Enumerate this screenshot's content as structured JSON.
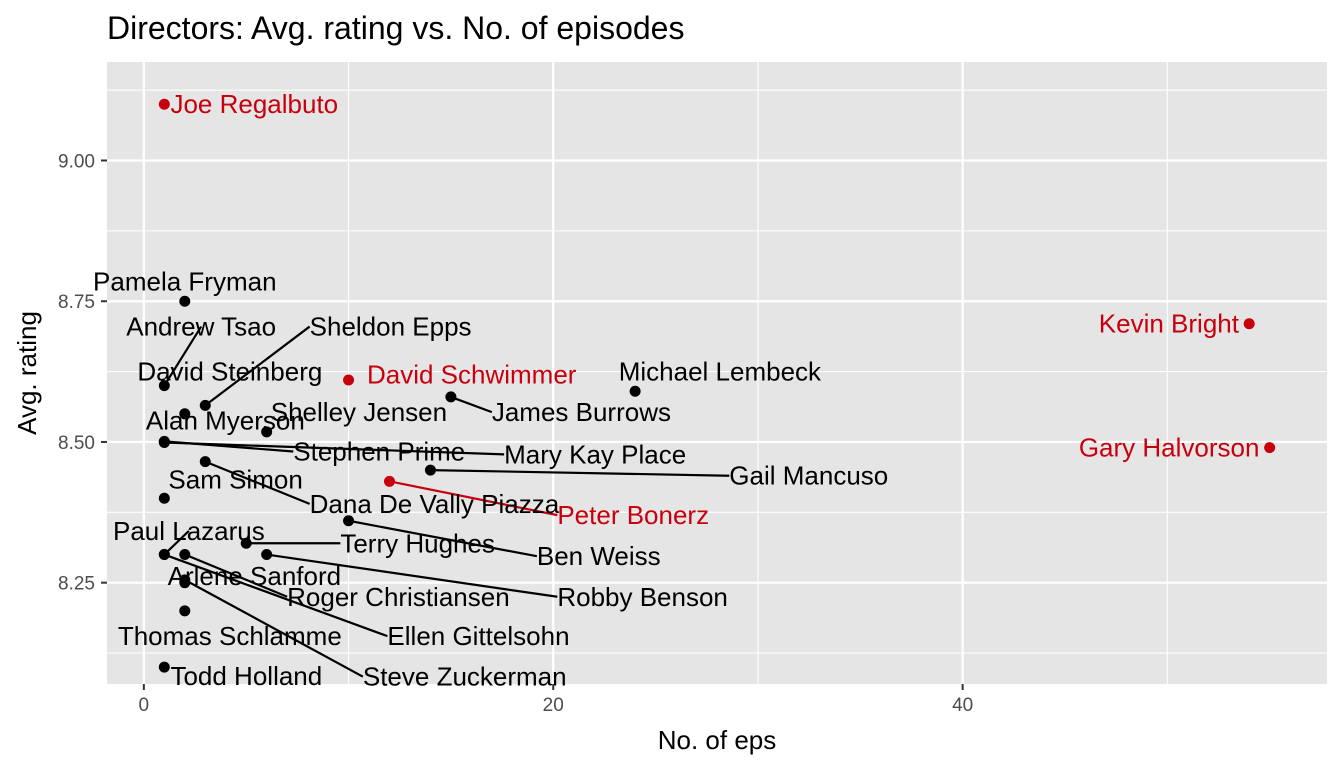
{
  "chart_data": {
    "type": "scatter",
    "title": "Directors: Avg. rating vs. No. of episodes",
    "xlabel": "No. of eps",
    "ylabel": "Avg. rating",
    "xlim": [
      -1.8,
      57.8
    ],
    "ylim": [
      8.07,
      9.175
    ],
    "xticks": [
      {
        "value": 0,
        "label": "0"
      },
      {
        "value": 20,
        "label": "20"
      },
      {
        "value": 40,
        "label": "40"
      }
    ],
    "yticks": [
      {
        "value": 8.25,
        "label": "8.25"
      },
      {
        "value": 8.5,
        "label": "8.50"
      },
      {
        "value": 8.75,
        "label": "8.75"
      },
      {
        "value": 9.0,
        "label": "9.00"
      }
    ],
    "grid": true,
    "legend": "none",
    "colors": {
      "panel": "#e5e5e5",
      "grid": "#ffffff",
      "normal_point": "#000000",
      "highlight_point": "#c8000d"
    },
    "points": [
      {
        "name": "Joe Regalbuto",
        "x": 1,
        "y": 9.1,
        "highlight": true,
        "label_x": 1.3,
        "label_y": 9.1,
        "anchor": "start"
      },
      {
        "name": "Kevin Bright",
        "x": 54,
        "y": 8.71,
        "highlight": true,
        "label_x": 53.5,
        "label_y": 8.71,
        "anchor": "end"
      },
      {
        "name": "Gary Halvorson",
        "x": 55,
        "y": 8.49,
        "highlight": true,
        "label_x": 54.5,
        "label_y": 8.49,
        "anchor": "end"
      },
      {
        "name": "David Schwimmer",
        "x": 10,
        "y": 8.61,
        "highlight": true,
        "label_x": 10.9,
        "label_y": 8.62,
        "anchor": "start"
      },
      {
        "name": "Peter Bonerz",
        "x": 12,
        "y": 8.43,
        "highlight": true,
        "label_x": 20.2,
        "label_y": 8.37,
        "anchor": "start",
        "leader": true
      },
      {
        "name": "Pamela Fryman",
        "x": 2,
        "y": 8.75,
        "highlight": false,
        "label_x": 2.0,
        "label_y": 8.785,
        "anchor": "middle"
      },
      {
        "name": "Andrew Tsao",
        "x": 1,
        "y": 8.6,
        "highlight": false,
        "label_x": 2.8,
        "label_y": 8.705,
        "anchor": "middle",
        "leader": true
      },
      {
        "name": "Sheldon Epps",
        "x": 3,
        "y": 8.565,
        "highlight": false,
        "label_x": 8.1,
        "label_y": 8.705,
        "anchor": "start",
        "leader": true
      },
      {
        "name": "David Steinberg",
        "x": 2,
        "y": 8.55,
        "highlight": false,
        "label_x": 4.2,
        "label_y": 8.625,
        "anchor": "middle"
      },
      {
        "name": "Michael Lembeck",
        "x": 24,
        "y": 8.59,
        "highlight": false,
        "label_x": 23.2,
        "label_y": 8.625,
        "anchor": "start"
      },
      {
        "name": "Shelley Jensen",
        "x": 6,
        "y": 8.518,
        "highlight": false,
        "label_x": 6.2,
        "label_y": 8.553,
        "anchor": "start"
      },
      {
        "name": "James Burrows",
        "x": 15,
        "y": 8.58,
        "highlight": false,
        "label_x": 17.0,
        "label_y": 8.553,
        "anchor": "start",
        "leader": true
      },
      {
        "name": "Alan Myerson",
        "x": 1,
        "y": 8.5,
        "highlight": false,
        "label_x": 0.1,
        "label_y": 8.538,
        "anchor": "start"
      },
      {
        "name": "Stephen Prime",
        "x": 1,
        "y": 8.501,
        "highlight": false,
        "label_x": 7.3,
        "label_y": 8.483,
        "anchor": "start",
        "leader": true
      },
      {
        "name": "Mary Kay Place",
        "x": 1,
        "y": 8.499,
        "highlight": false,
        "label_x": 17.6,
        "label_y": 8.478,
        "anchor": "start",
        "leader": true
      },
      {
        "name": "Gail Mancuso",
        "x": 14,
        "y": 8.45,
        "highlight": false,
        "label_x": 28.6,
        "label_y": 8.44,
        "anchor": "start",
        "leader": true
      },
      {
        "name": "Sam Simon",
        "x": 1,
        "y": 8.4,
        "highlight": false,
        "label_x": 1.2,
        "label_y": 8.433,
        "anchor": "start"
      },
      {
        "name": "Dana De Vally Piazza",
        "x": 3,
        "y": 8.465,
        "highlight": false,
        "label_x": 8.1,
        "label_y": 8.39,
        "anchor": "start",
        "leader": true
      },
      {
        "name": "Paul Lazarus",
        "x": 1,
        "y": 8.3,
        "highlight": false,
        "label_x": 2.2,
        "label_y": 8.342,
        "anchor": "middle",
        "leader": true
      },
      {
        "name": "Terry Hughes",
        "x": 5,
        "y": 8.32,
        "highlight": false,
        "label_x": 9.6,
        "label_y": 8.32,
        "anchor": "start",
        "leader": true
      },
      {
        "name": "Ben Weiss",
        "x": 10,
        "y": 8.36,
        "highlight": false,
        "label_x": 19.2,
        "label_y": 8.297,
        "anchor": "start",
        "leader": true
      },
      {
        "name": "Arlene Sanford",
        "x": 2,
        "y": 8.25,
        "highlight": false,
        "label_x": 5.4,
        "label_y": 8.262,
        "anchor": "middle"
      },
      {
        "name": "Roger Christiansen",
        "x": 2,
        "y": 8.3,
        "highlight": false,
        "label_x": 7.0,
        "label_y": 8.225,
        "anchor": "start",
        "leader": true
      },
      {
        "name": "Robby Benson",
        "x": 6,
        "y": 8.3,
        "highlight": false,
        "label_x": 20.2,
        "label_y": 8.225,
        "anchor": "start",
        "leader": true
      },
      {
        "name": "Ellen Gittelsohn",
        "x": 1,
        "y": 8.3,
        "highlight": false,
        "label_x": 11.9,
        "label_y": 8.155,
        "anchor": "start",
        "leader": true
      },
      {
        "name": "Thomas Schlamme",
        "x": 2,
        "y": 8.2,
        "highlight": false,
        "label_x": 4.2,
        "label_y": 8.155,
        "anchor": "middle"
      },
      {
        "name": "Todd Holland",
        "x": 1,
        "y": 8.1,
        "highlight": false,
        "label_x": 1.3,
        "label_y": 8.084,
        "anchor": "start"
      },
      {
        "name": "Steve Zuckerman",
        "x": 2,
        "y": 8.255,
        "highlight": false,
        "label_x": 10.7,
        "label_y": 8.083,
        "anchor": "start",
        "leader": true
      }
    ]
  }
}
